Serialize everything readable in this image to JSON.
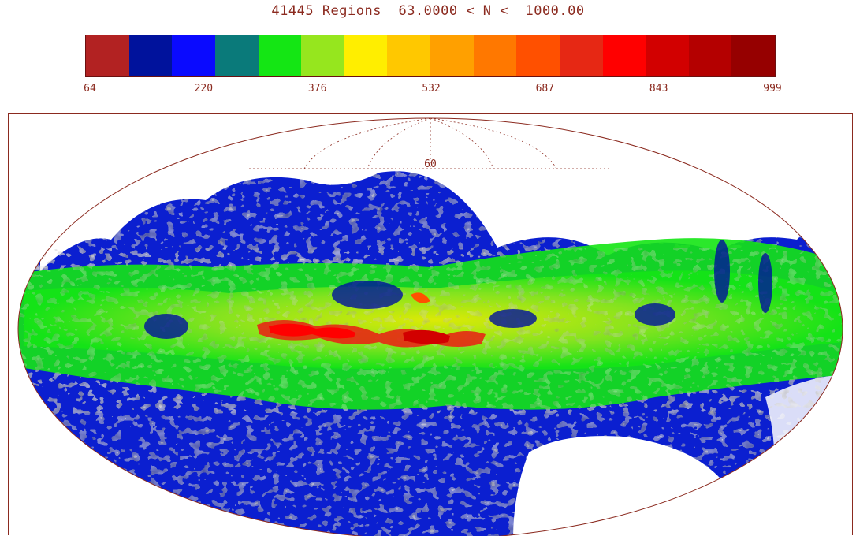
{
  "header": {
    "count": "41445",
    "count_label": "Regions",
    "range_text": "63.0000 < N <  1000.00"
  },
  "colorbar": {
    "colors": [
      "#b22222",
      "#00129c",
      "#0a0aff",
      "#0a7a7a",
      "#14e614",
      "#96e61e",
      "#ffee00",
      "#ffc800",
      "#ffa000",
      "#ff7800",
      "#ff5000",
      "#e62814",
      "#ff0000",
      "#d20000",
      "#b40000",
      "#960000"
    ],
    "tick_labels": [
      "64",
      "220",
      "376",
      "532",
      "687",
      "843",
      "999"
    ]
  },
  "map": {
    "projection": "Mollweide",
    "grid_label": "60"
  }
}
